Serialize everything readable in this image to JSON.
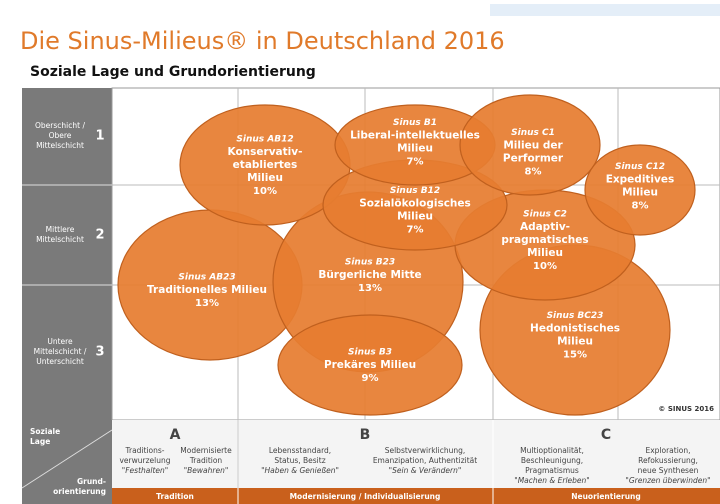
{
  "header": {
    "title": "Die Sinus-Milieus® in Deutschland 2016",
    "subtitle": "Soziale Lage und Grundorientierung"
  },
  "rows": [
    {
      "label_lines": [
        "Oberschicht /",
        "Obere",
        "Mittelschicht"
      ],
      "number": "1"
    },
    {
      "label_lines": [
        "Mittlere",
        "Mittelschicht"
      ],
      "number": "2"
    },
    {
      "label_lines": [
        "Untere",
        "Mittelschicht /",
        "Unterschicht"
      ],
      "number": "3"
    }
  ],
  "milieus": [
    {
      "code": "Sinus AB23",
      "name_lines": [
        "Traditionelles Milieu"
      ],
      "share": "13%"
    },
    {
      "code": "Sinus B23",
      "name_lines": [
        "Bürgerliche Mitte"
      ],
      "share": "13%"
    },
    {
      "code": "Sinus BC23",
      "name_lines": [
        "Hedonistisches",
        "Milieu"
      ],
      "share": "15%"
    },
    {
      "code": "Sinus B3",
      "name_lines": [
        "Prekäres Milieu"
      ],
      "share": "9%"
    },
    {
      "code": "Sinus AB12",
      "name_lines": [
        "Konservativ-",
        "etabliertes",
        "Milieu"
      ],
      "share": "10%"
    },
    {
      "code": "Sinus C2",
      "name_lines": [
        "Adaptiv-",
        "pragmatisches",
        "Milieu"
      ],
      "share": "10%"
    },
    {
      "code": "Sinus B12",
      "name_lines": [
        "Sozialökologisches",
        "Milieu"
      ],
      "share": "7%"
    },
    {
      "code": "Sinus B1",
      "name_lines": [
        "Liberal-intellektuelles",
        "Milieu"
      ],
      "share": "7%"
    },
    {
      "code": "Sinus C1",
      "name_lines": [
        "Milieu der",
        "Performer"
      ],
      "share": "8%"
    },
    {
      "code": "Sinus C12",
      "name_lines": [
        "Expeditives",
        "Milieu"
      ],
      "share": "8%"
    }
  ],
  "copyright": "© SINUS 2016",
  "axis": {
    "social_label_lines": [
      "Soziale",
      "Lage"
    ],
    "orientation_label_lines": [
      "Grund-",
      "orientierung"
    ]
  },
  "sections": [
    {
      "letter": "A",
      "footer": "Tradition",
      "items": [
        {
          "lines": [
            "Traditions-",
            "verwurzelung"
          ],
          "quote": "\"Festhalten\""
        },
        {
          "lines": [
            "Modernisierte",
            "Tradition"
          ],
          "quote": "\"Bewahren\""
        }
      ]
    },
    {
      "letter": "B",
      "footer": "Modernisierung / Individualisierung",
      "items": [
        {
          "lines": [
            "Lebensstandard,",
            "Status, Besitz"
          ],
          "quote": "\"Haben & Genießen\""
        },
        {
          "lines": [
            "Selbstverwirklichung,",
            "Emanzipation, Authentizität"
          ],
          "quote": "\"Sein & Verändern\""
        }
      ]
    },
    {
      "letter": "C",
      "footer": "Neuorientierung",
      "items": [
        {
          "lines": [
            "Multioptionalität,",
            "Beschleunigung,",
            "Pragmatismus"
          ],
          "quote": "\"Machen & Erleben\""
        },
        {
          "lines": [
            "Exploration,",
            "Refokussierung,",
            "neue Synthesen"
          ],
          "quote": "\"Grenzen überwinden\""
        }
      ]
    }
  ]
}
